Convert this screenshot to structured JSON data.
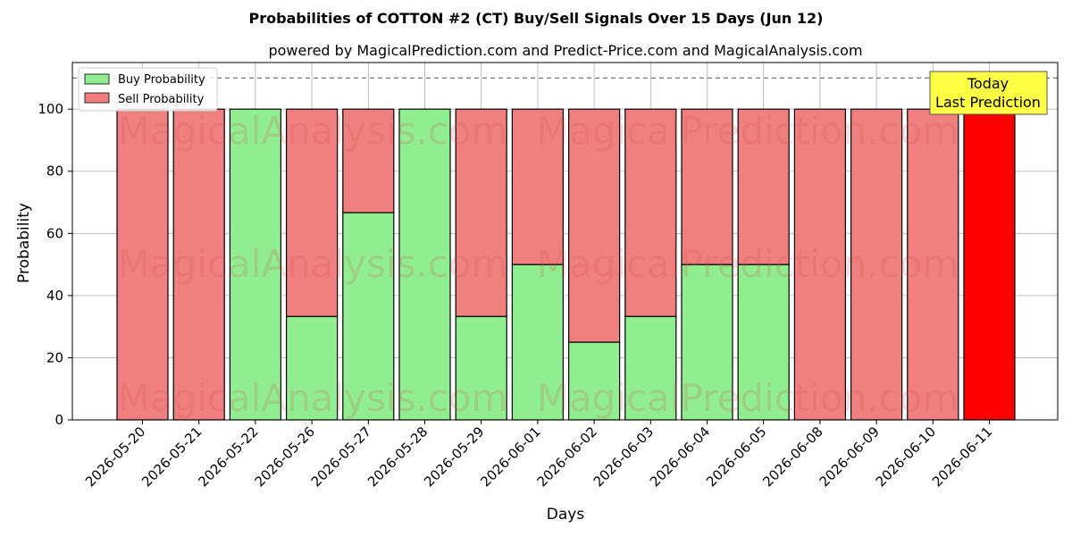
{
  "chart_data": {
    "type": "bar",
    "title": "Probabilities of COTTON #2 (CT) Buy/Sell Signals Over 15 Days (Jun 12)",
    "subtitle": "powered by MagicalPrediction.com and Predict-Price.com and MagicalAnalysis.com",
    "xlabel": "Days",
    "ylabel": "Probability",
    "ylim": [
      0,
      115
    ],
    "yticks": [
      0,
      20,
      40,
      60,
      80,
      100
    ],
    "grid": true,
    "stacked": true,
    "reference_line": 110,
    "legend_position": "top-left",
    "categories": [
      "2026-05-20",
      "2026-05-21",
      "2026-05-22",
      "2026-05-26",
      "2026-05-27",
      "2026-05-28",
      "2026-05-29",
      "2026-06-01",
      "2026-06-02",
      "2026-06-03",
      "2026-06-04",
      "2026-06-05",
      "2026-06-08",
      "2026-06-09",
      "2026-06-10",
      "2026-06-11"
    ],
    "series": [
      {
        "name": "Buy Probability",
        "color": "#90ee90",
        "values": [
          0,
          0,
          100,
          33.3,
          66.7,
          100,
          33.3,
          50,
          25,
          33.3,
          50,
          50,
          0,
          0,
          0,
          0
        ]
      },
      {
        "name": "Sell Probability",
        "color": "#f08080",
        "values": [
          100,
          100,
          0,
          66.7,
          33.3,
          0,
          66.7,
          50,
          75,
          66.7,
          50,
          50,
          100,
          100,
          100,
          100
        ]
      }
    ],
    "highlight": {
      "index": 15,
      "color": "#ff0000"
    },
    "annotation": {
      "lines": [
        "Today",
        "Last Prediction"
      ],
      "background": "#ffff44"
    },
    "watermarks": [
      "MagicalAnalysis.com",
      "MagicalPrediction.com"
    ]
  }
}
